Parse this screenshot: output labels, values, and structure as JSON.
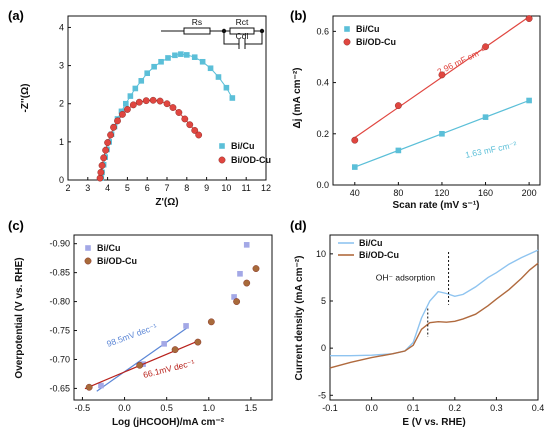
{
  "figure": {
    "colors": {
      "blue": "#5bbfd8",
      "red": "#e04640",
      "redDark": "#b8211b",
      "lavender": "#a3a8e6",
      "brown": "#a86a3a",
      "darkblue": "#5b86d6",
      "curveA": "#8fc4f0",
      "curveB": "#b06a3e"
    }
  },
  "chart_data": [
    {
      "panel": "(a)",
      "type": "scatter",
      "xlabel": "Z'(Ω)",
      "ylabel": "-Z''(Ω)",
      "xlim": [
        2,
        12
      ],
      "ylim": [
        0,
        4.3
      ],
      "xticks": [
        "2",
        "3",
        "4",
        "5",
        "6",
        "7",
        "8",
        "9",
        "10",
        "11",
        "12"
      ],
      "yticks": [
        "0",
        "1",
        "2",
        "3",
        "4"
      ],
      "circuit_labels": [
        "Rs",
        "Rct",
        "Cdl"
      ],
      "series": [
        {
          "name": "Bi/Cu",
          "marker": "square",
          "color": "#5bbfd8",
          "x": [
            3.68,
            3.72,
            3.8,
            3.88,
            3.97,
            4.08,
            4.2,
            4.35,
            4.5,
            4.7,
            4.92,
            5.15,
            5.4,
            5.7,
            6.0,
            6.35,
            6.7,
            7.05,
            7.4,
            7.7,
            8.0,
            8.4,
            8.8,
            9.2,
            9.6,
            10.0,
            10.3
          ],
          "y": [
            0.05,
            0.2,
            0.4,
            0.6,
            0.8,
            1.0,
            1.2,
            1.4,
            1.6,
            1.8,
            2.0,
            2.2,
            2.4,
            2.6,
            2.8,
            2.97,
            3.1,
            3.2,
            3.27,
            3.3,
            3.28,
            3.22,
            3.1,
            2.93,
            2.7,
            2.42,
            2.15
          ]
        },
        {
          "name": "Bi/OD-Cu",
          "marker": "circle",
          "color": "#e04640",
          "x": [
            3.62,
            3.66,
            3.72,
            3.8,
            3.9,
            4.0,
            4.15,
            4.3,
            4.5,
            4.75,
            5.0,
            5.3,
            5.6,
            5.95,
            6.3,
            6.65,
            7.0,
            7.3,
            7.6,
            7.9,
            8.15,
            8.4,
            8.6
          ],
          "y": [
            0.05,
            0.2,
            0.38,
            0.58,
            0.78,
            0.98,
            1.18,
            1.38,
            1.55,
            1.72,
            1.85,
            1.97,
            2.04,
            2.08,
            2.09,
            2.07,
            2.0,
            1.9,
            1.77,
            1.6,
            1.45,
            1.3,
            1.18
          ]
        }
      ]
    },
    {
      "panel": "(b)",
      "type": "scatter",
      "xlabel": "Scan rate (mV s⁻¹)",
      "ylabel": "Δj (mA cm⁻²)",
      "xlim": [
        20,
        210
      ],
      "ylim": [
        0,
        0.66
      ],
      "xticks": [
        "40",
        "80",
        "120",
        "160",
        "200"
      ],
      "yticks": [
        "0.0",
        "0.2",
        "0.4",
        "0.6"
      ],
      "categories": [
        40,
        80,
        120,
        160,
        200
      ],
      "series": [
        {
          "name": "Bi/Cu",
          "marker": "square",
          "color": "#5bbfd8",
          "values": [
            0.07,
            0.135,
            0.2,
            0.265,
            0.33
          ],
          "fit_label": "1.63 mF cm⁻²"
        },
        {
          "name": "Bi/OD-Cu",
          "marker": "circle",
          "color": "#e04640",
          "values": [
            0.175,
            0.31,
            0.43,
            0.54,
            0.65
          ],
          "fit_label": "2.96 mF cm⁻²"
        }
      ]
    },
    {
      "panel": "(c)",
      "type": "scatter",
      "xlabel": "Log (jHCOOH)/mA cm⁻²",
      "ylabel": "Overpotential (V vs. RHE)",
      "xlim": [
        -0.6,
        1.75
      ],
      "ylim": [
        -0.63,
        -0.915
      ],
      "y_inverted": true,
      "xticks": [
        "-0.5",
        "0.0",
        "0.5",
        "1.0",
        "1.5"
      ],
      "yticks": [
        "-0.65",
        "-0.70",
        "-0.75",
        "-0.80",
        "-0.85",
        "-0.90"
      ],
      "series": [
        {
          "name": "Bi/Cu",
          "marker": "square",
          "color": "#a3a8e6",
          "x": [
            -0.28,
            0.22,
            0.47,
            0.73,
            1.3,
            1.37,
            1.45
          ],
          "y": [
            -0.655,
            -0.692,
            -0.727,
            -0.758,
            -0.808,
            -0.848,
            -0.898
          ],
          "fit_label": "98.5mV dec⁻¹"
        },
        {
          "name": "Bi/OD-Cu",
          "marker": "circle",
          "color": "#a86a3a",
          "x": [
            -0.42,
            0.18,
            0.6,
            0.87,
            1.03,
            1.33,
            1.45,
            1.56
          ],
          "y": [
            -0.652,
            -0.69,
            -0.717,
            -0.73,
            -0.765,
            -0.8,
            -0.832,
            -0.857
          ],
          "fit_label": "66.1mV dec⁻¹"
        }
      ]
    },
    {
      "panel": "(d)",
      "type": "line",
      "xlabel": "E (V vs. RHE)",
      "ylabel": "Current density (mA cm⁻²)",
      "xlim": [
        -0.1,
        0.4
      ],
      "ylim": [
        -5.5,
        12
      ],
      "xticks": [
        "-0.1",
        "0.0",
        "0.1",
        "0.2",
        "0.3",
        "0.4"
      ],
      "yticks": [
        "-5",
        "0",
        "5",
        "10"
      ],
      "annotation": "OH⁻ adsorption",
      "series": [
        {
          "name": "Bi/Cu",
          "color": "#8fc4f0",
          "x": [
            -0.1,
            -0.05,
            0.0,
            0.05,
            0.08,
            0.1,
            0.12,
            0.14,
            0.16,
            0.18,
            0.2,
            0.22,
            0.25,
            0.28,
            0.3,
            0.33,
            0.36,
            0.38,
            0.4
          ],
          "y": [
            -0.8,
            -0.8,
            -0.75,
            -0.6,
            -0.3,
            0.6,
            3.2,
            5.0,
            6.0,
            5.8,
            5.5,
            5.7,
            6.5,
            7.5,
            8.0,
            8.9,
            9.6,
            10.0,
            10.4
          ]
        },
        {
          "name": "Bi/OD-Cu",
          "color": "#b06a3e",
          "x": [
            -0.1,
            -0.05,
            0.0,
            0.05,
            0.08,
            0.1,
            0.12,
            0.14,
            0.16,
            0.18,
            0.2,
            0.22,
            0.25,
            0.28,
            0.3,
            0.33,
            0.36,
            0.38,
            0.4
          ],
          "y": [
            -2.1,
            -1.5,
            -1.0,
            -0.6,
            -0.3,
            0.3,
            2.0,
            2.7,
            2.8,
            2.75,
            2.85,
            3.1,
            3.6,
            4.5,
            5.2,
            6.2,
            7.4,
            8.3,
            9.0
          ]
        }
      ]
    }
  ]
}
